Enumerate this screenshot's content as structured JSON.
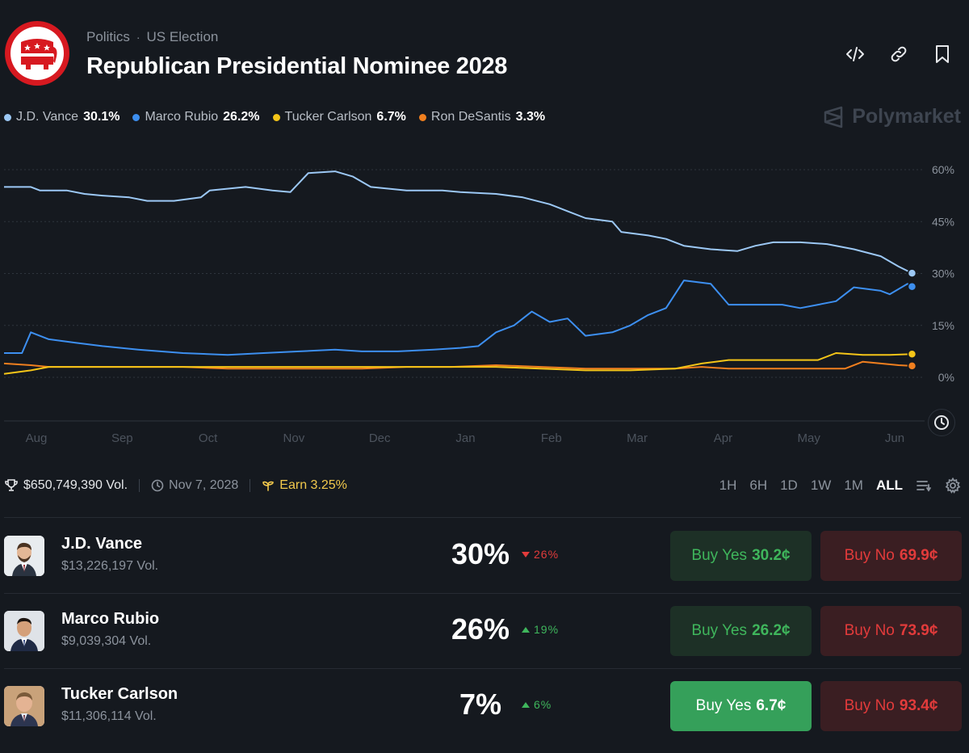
{
  "breadcrumb": {
    "category": "Politics",
    "subcategory": "US Election"
  },
  "title": "Republican Presidential Nominee 2028",
  "brand": "Polymarket",
  "legend": [
    {
      "name": "J.D. Vance",
      "value": "30.1%",
      "color": "#9cc8f5"
    },
    {
      "name": "Marco Rubio",
      "value": "26.2%",
      "color": "#3d8ff0"
    },
    {
      "name": "Tucker Carlson",
      "value": "6.7%",
      "color": "#f5c518"
    },
    {
      "name": "Ron DeSantis",
      "value": "3.3%",
      "color": "#f07f1f"
    }
  ],
  "chart_data": {
    "type": "line",
    "x_labels": [
      "Aug",
      "Sep",
      "Oct",
      "Nov",
      "Dec",
      "Jan",
      "Feb",
      "Mar",
      "Apr",
      "May",
      "Jun"
    ],
    "y_ticks": [
      "60%",
      "45%",
      "30%",
      "15%",
      "0%"
    ],
    "ylim": [
      0,
      60
    ],
    "x_range": [
      0,
      10.2
    ],
    "grid": true,
    "series": [
      {
        "name": "J.D. Vance",
        "color": "#9cc8f5",
        "points": [
          [
            0,
            55
          ],
          [
            0.3,
            55
          ],
          [
            0.4,
            54
          ],
          [
            0.7,
            54
          ],
          [
            0.9,
            53
          ],
          [
            1.1,
            52.5
          ],
          [
            1.4,
            52
          ],
          [
            1.6,
            51
          ],
          [
            1.9,
            51
          ],
          [
            2.2,
            52
          ],
          [
            2.3,
            54
          ],
          [
            2.7,
            55
          ],
          [
            3.0,
            54
          ],
          [
            3.2,
            53.5
          ],
          [
            3.4,
            59
          ],
          [
            3.7,
            59.5
          ],
          [
            3.9,
            58
          ],
          [
            4.1,
            55
          ],
          [
            4.5,
            54
          ],
          [
            4.9,
            54
          ],
          [
            5.1,
            53.5
          ],
          [
            5.5,
            53
          ],
          [
            5.8,
            52
          ],
          [
            6.1,
            50
          ],
          [
            6.3,
            48
          ],
          [
            6.5,
            46
          ],
          [
            6.8,
            45
          ],
          [
            6.9,
            42
          ],
          [
            7.2,
            41
          ],
          [
            7.4,
            40
          ],
          [
            7.6,
            38
          ],
          [
            7.9,
            37
          ],
          [
            8.2,
            36.5
          ],
          [
            8.4,
            38
          ],
          [
            8.6,
            39
          ],
          [
            8.9,
            39
          ],
          [
            9.2,
            38.5
          ],
          [
            9.5,
            37
          ],
          [
            9.8,
            35
          ],
          [
            10.0,
            32
          ],
          [
            10.15,
            30.1
          ]
        ]
      },
      {
        "name": "Marco Rubio",
        "color": "#3d8ff0",
        "points": [
          [
            0,
            7
          ],
          [
            0.2,
            7
          ],
          [
            0.3,
            13
          ],
          [
            0.5,
            11
          ],
          [
            0.8,
            10
          ],
          [
            1.1,
            9
          ],
          [
            1.5,
            8
          ],
          [
            2.0,
            7
          ],
          [
            2.5,
            6.5
          ],
          [
            2.9,
            7
          ],
          [
            3.3,
            7.5
          ],
          [
            3.7,
            8
          ],
          [
            4.0,
            7.5
          ],
          [
            4.4,
            7.5
          ],
          [
            4.8,
            8
          ],
          [
            5.1,
            8.5
          ],
          [
            5.3,
            9
          ],
          [
            5.5,
            13
          ],
          [
            5.7,
            15
          ],
          [
            5.9,
            19
          ],
          [
            6.1,
            16
          ],
          [
            6.3,
            17
          ],
          [
            6.5,
            12
          ],
          [
            6.8,
            13
          ],
          [
            7.0,
            15
          ],
          [
            7.2,
            18
          ],
          [
            7.4,
            20
          ],
          [
            7.6,
            28
          ],
          [
            7.9,
            27
          ],
          [
            8.1,
            21
          ],
          [
            8.4,
            21
          ],
          [
            8.7,
            21
          ],
          [
            8.9,
            20
          ],
          [
            9.1,
            21
          ],
          [
            9.3,
            22
          ],
          [
            9.5,
            26
          ],
          [
            9.8,
            25
          ],
          [
            9.9,
            24
          ],
          [
            10.1,
            27
          ],
          [
            10.15,
            26.2
          ]
        ]
      },
      {
        "name": "Tucker Carlson",
        "color": "#f5c518",
        "points": [
          [
            0,
            1
          ],
          [
            0.3,
            2
          ],
          [
            0.5,
            3
          ],
          [
            1.0,
            3
          ],
          [
            1.5,
            3
          ],
          [
            2.0,
            3
          ],
          [
            2.5,
            3
          ],
          [
            3.0,
            3
          ],
          [
            3.5,
            3
          ],
          [
            4.0,
            3
          ],
          [
            4.5,
            3
          ],
          [
            5.0,
            3
          ],
          [
            5.5,
            3
          ],
          [
            6.0,
            2.5
          ],
          [
            6.5,
            2
          ],
          [
            7.0,
            2
          ],
          [
            7.5,
            2.5
          ],
          [
            7.8,
            4
          ],
          [
            8.1,
            5
          ],
          [
            8.4,
            5
          ],
          [
            8.8,
            5
          ],
          [
            9.1,
            5
          ],
          [
            9.3,
            7
          ],
          [
            9.6,
            6.5
          ],
          [
            9.9,
            6.5
          ],
          [
            10.15,
            6.7
          ]
        ]
      },
      {
        "name": "Ron DeSantis",
        "color": "#f07f1f",
        "points": [
          [
            0,
            4
          ],
          [
            0.3,
            3.5
          ],
          [
            0.5,
            3
          ],
          [
            1.0,
            3
          ],
          [
            1.5,
            3
          ],
          [
            2.0,
            3
          ],
          [
            2.5,
            2.5
          ],
          [
            3.0,
            2.5
          ],
          [
            3.5,
            2.5
          ],
          [
            4.0,
            2.5
          ],
          [
            4.5,
            3
          ],
          [
            5.0,
            3
          ],
          [
            5.5,
            3.5
          ],
          [
            6.0,
            3
          ],
          [
            6.5,
            2.5
          ],
          [
            7.0,
            2.5
          ],
          [
            7.5,
            2.5
          ],
          [
            7.8,
            3
          ],
          [
            8.1,
            2.5
          ],
          [
            8.5,
            2.5
          ],
          [
            9.0,
            2.5
          ],
          [
            9.4,
            2.5
          ],
          [
            9.6,
            4.5
          ],
          [
            9.8,
            4
          ],
          [
            10.0,
            3.5
          ],
          [
            10.15,
            3.3
          ]
        ]
      }
    ]
  },
  "stats": {
    "volume": "$650,749,390 Vol.",
    "date": "Nov 7, 2028",
    "earn": "Earn 3.25%"
  },
  "time_ranges": [
    "1H",
    "6H",
    "1D",
    "1W",
    "1M",
    "ALL"
  ],
  "active_range": "ALL",
  "candidates": [
    {
      "name": "J.D. Vance",
      "volume": "$13,226,197 Vol.",
      "percent": "30%",
      "change": "26%",
      "direction": "down",
      "yes_label": "Buy Yes",
      "yes_price": "30.2¢",
      "no_label": "Buy No",
      "no_price": "69.9¢"
    },
    {
      "name": "Marco Rubio",
      "volume": "$9,039,304 Vol.",
      "percent": "26%",
      "change": "19%",
      "direction": "up",
      "yes_label": "Buy Yes",
      "yes_price": "26.2¢",
      "no_label": "Buy No",
      "no_price": "73.9¢"
    },
    {
      "name": "Tucker Carlson",
      "volume": "$11,306,114 Vol.",
      "percent": "7%",
      "change": "6%",
      "direction": "up",
      "yes_label": "Buy Yes",
      "yes_price": "6.7¢",
      "no_label": "Buy No",
      "no_price": "93.4¢"
    }
  ]
}
